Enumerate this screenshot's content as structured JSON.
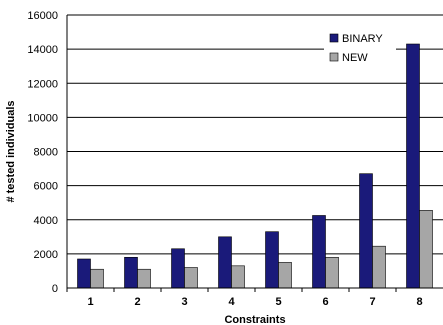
{
  "chart_data": {
    "type": "bar",
    "categories": [
      "1",
      "2",
      "3",
      "4",
      "5",
      "6",
      "7",
      "8"
    ],
    "series": [
      {
        "name": "BINARY",
        "color": "#1a1a7a",
        "values": [
          1700,
          1800,
          2300,
          3000,
          3300,
          4250,
          6700,
          14300
        ]
      },
      {
        "name": "NEW",
        "color": "#a6a6a6",
        "values": [
          1100,
          1100,
          1200,
          1300,
          1500,
          1800,
          2450,
          4550
        ]
      }
    ],
    "xlabel": "Constraints",
    "ylabel": "# tested individuals",
    "ylim": [
      0,
      16000
    ],
    "yticks": [
      0,
      2000,
      4000,
      6000,
      8000,
      10000,
      12000,
      14000,
      16000
    ],
    "grid": true,
    "legend": "top-right"
  }
}
